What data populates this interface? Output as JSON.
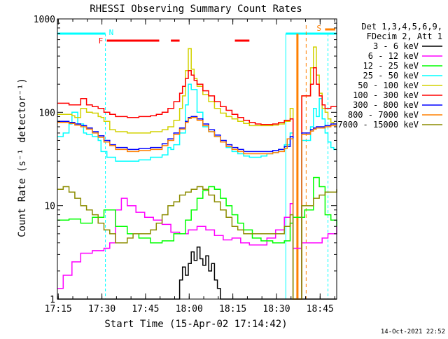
{
  "chart_data": {
    "type": "line",
    "title": "RHESSI Observing Summary Count Rates",
    "xlabel": "Start Time (15-Apr-02 17:14:42)",
    "ylabel": "Count Rate (s⁻¹ detector⁻¹)",
    "y_scale": "log",
    "ylim": [
      1,
      1000
    ],
    "y_ticks": [
      1,
      10,
      100,
      1000
    ],
    "y_tick_labels": [
      "1",
      "10",
      "100",
      "1000"
    ],
    "xlim": [
      0,
      96
    ],
    "x_ticks": [
      0.3,
      15.3,
      30.3,
      45.3,
      60.3,
      75.3,
      90.3
    ],
    "x_tick_labels": [
      "17:15",
      "17:30",
      "17:45",
      "18:00",
      "18:15",
      "18:30",
      "18:45"
    ],
    "x_units": "minutes after 17:14:42",
    "legend_position": "top-right",
    "legend_header": [
      "Det 1,3,4,5,6,9,",
      "FDecim 2, Att 1"
    ],
    "series": [
      {
        "name": "3 - 6 keV",
        "color": "#000000",
        "x": [
          0,
          17,
          18,
          41,
          42,
          43,
          44,
          45,
          46,
          47,
          48,
          49,
          50,
          51,
          52,
          53,
          54,
          55,
          56,
          59,
          60,
          96
        ],
        "y": [
          1,
          1,
          1,
          1,
          1.6,
          2.2,
          1.8,
          2.4,
          3.2,
          2.6,
          3.6,
          2.7,
          2.3,
          2.9,
          2.0,
          2.4,
          1.6,
          1.3,
          1,
          1,
          1,
          1
        ]
      },
      {
        "name": "6 - 12 keV",
        "color": "#ff00ff",
        "x": [
          0,
          2,
          5,
          8,
          12,
          16,
          18,
          20,
          22,
          24,
          27,
          30,
          33,
          36,
          39,
          42,
          45,
          48,
          51,
          54,
          57,
          60,
          63,
          66,
          69,
          72,
          75,
          78,
          80,
          81,
          84,
          88,
          91,
          93,
          96
        ],
        "y": [
          1.3,
          1.8,
          2.5,
          3.1,
          3.3,
          3.5,
          4,
          9,
          12,
          10,
          8.5,
          7.5,
          7.0,
          6.3,
          5.2,
          5.0,
          5.5,
          6.0,
          5.5,
          4.8,
          4.3,
          4.5,
          4.0,
          3.8,
          3.8,
          4.5,
          5.5,
          7.5,
          10.5,
          3.5,
          4,
          4,
          4.5,
          5,
          6
        ]
      },
      {
        "name": "12 - 25 keV",
        "color": "#00ff00",
        "x": [
          0,
          4,
          8,
          12,
          16,
          20,
          24,
          28,
          32,
          36,
          40,
          44,
          46,
          48,
          50,
          52,
          54,
          56,
          58,
          60,
          62,
          64,
          67,
          70,
          74,
          78,
          80,
          81,
          85,
          88,
          90,
          92,
          94,
          96
        ],
        "y": [
          7,
          7.2,
          6.5,
          7.5,
          9,
          6,
          5,
          4.5,
          4,
          4.2,
          5,
          7,
          9,
          12,
          14.5,
          16,
          15,
          12,
          10,
          8,
          6.5,
          5.5,
          4.5,
          4.2,
          4.0,
          4.2,
          6.5,
          7.5,
          9,
          20,
          16,
          8,
          7,
          6
        ]
      },
      {
        "name": "25 - 50 keV",
        "color": "#00ffff",
        "x": [
          0,
          2,
          4,
          5,
          7,
          9,
          10,
          12,
          14,
          15,
          17,
          20,
          24,
          28,
          32,
          36,
          38,
          39,
          40,
          42,
          44,
          45,
          46,
          48,
          50,
          52,
          54,
          56,
          58,
          60,
          62,
          64,
          66,
          68,
          70,
          72,
          74,
          76,
          78,
          80,
          81,
          84,
          87,
          88,
          89,
          90,
          91,
          92,
          93,
          94,
          95,
          96
        ],
        "y": [
          55,
          60,
          75,
          100,
          75,
          60,
          58,
          55,
          50,
          38,
          33,
          30,
          30,
          31,
          33,
          35,
          42,
          40,
          45,
          60,
          120,
          200,
          175,
          100,
          70,
          62,
          55,
          48,
          42,
          38,
          36,
          34,
          33,
          33,
          34,
          36,
          37,
          40,
          45,
          60,
          1,
          50,
          70,
          110,
          90,
          140,
          85,
          60,
          48,
          42,
          40,
          40
        ]
      },
      {
        "name": "50 - 100 keV",
        "color": "#d2d200",
        "x": [
          0,
          3,
          5,
          6,
          8,
          10,
          12,
          14,
          15,
          16,
          18,
          20,
          24,
          28,
          32,
          34,
          36,
          38,
          40,
          42,
          43,
          44,
          45,
          46,
          47,
          48,
          50,
          52,
          54,
          56,
          58,
          60,
          62,
          64,
          66,
          68,
          70,
          72,
          74,
          76,
          78,
          80,
          81,
          84,
          87,
          88,
          89,
          90,
          91,
          92,
          93,
          94,
          95,
          96
        ],
        "y": [
          95,
          95,
          92,
          88,
          110,
          100,
          98,
          90,
          88,
          80,
          65,
          62,
          60,
          60,
          62,
          62,
          65,
          70,
          82,
          110,
          150,
          280,
          480,
          290,
          230,
          190,
          155,
          130,
          110,
          98,
          90,
          85,
          80,
          76,
          72,
          72,
          72,
          72,
          73,
          75,
          80,
          110,
          1,
          150,
          300,
          500,
          250,
          160,
          110,
          100,
          85,
          78,
          75,
          75
        ]
      },
      {
        "name": "100 - 300 keV",
        "color": "#ff0000",
        "x": [
          0,
          2,
          4,
          6,
          8,
          10,
          12,
          14,
          16,
          18,
          20,
          24,
          28,
          32,
          34,
          36,
          38,
          40,
          42,
          43,
          44,
          45,
          46,
          47,
          48,
          50,
          52,
          54,
          56,
          58,
          60,
          62,
          64,
          66,
          68,
          70,
          72,
          74,
          76,
          78,
          80,
          81,
          84,
          87,
          88,
          89,
          90,
          91,
          92,
          93,
          94,
          96
        ],
        "y": [
          125,
          125,
          120,
          120,
          140,
          120,
          115,
          110,
          100,
          95,
          90,
          88,
          90,
          92,
          95,
          100,
          110,
          130,
          160,
          190,
          230,
          280,
          250,
          220,
          200,
          170,
          150,
          130,
          115,
          105,
          95,
          88,
          82,
          78,
          75,
          74,
          74,
          75,
          78,
          82,
          85,
          1,
          150,
          200,
          300,
          200,
          150,
          120,
          110,
          110,
          115,
          115
        ]
      },
      {
        "name": "300 - 800 keV",
        "color": "#0000ff",
        "x": [
          0,
          2,
          4,
          6,
          8,
          10,
          12,
          14,
          16,
          18,
          20,
          24,
          28,
          32,
          36,
          38,
          40,
          42,
          44,
          45,
          46,
          48,
          50,
          52,
          54,
          56,
          58,
          60,
          62,
          64,
          66,
          68,
          70,
          72,
          74,
          76,
          78,
          80,
          81,
          84,
          87,
          88,
          89,
          90,
          92,
          94,
          96
        ],
        "y": [
          80,
          80,
          78,
          75,
          72,
          68,
          62,
          56,
          50,
          45,
          42,
          40,
          41,
          42,
          46,
          52,
          60,
          68,
          80,
          88,
          90,
          85,
          75,
          65,
          57,
          50,
          45,
          42,
          40,
          38,
          38,
          38,
          38,
          38,
          39,
          40,
          43,
          55,
          1,
          60,
          65,
          68,
          70,
          70,
          72,
          75,
          75
        ]
      },
      {
        "name": "800 - 7000 keV",
        "color": "#ff8000",
        "x": [
          0,
          2,
          4,
          6,
          8,
          10,
          12,
          14,
          16,
          18,
          20,
          24,
          28,
          32,
          36,
          38,
          40,
          42,
          44,
          45,
          46,
          48,
          50,
          52,
          54,
          56,
          58,
          60,
          62,
          64,
          66,
          68,
          70,
          72,
          74,
          76,
          78,
          79,
          81,
          84,
          87,
          88,
          89,
          90,
          92,
          94,
          96
        ],
        "y": [
          78,
          78,
          76,
          73,
          70,
          66,
          60,
          54,
          48,
          44,
          40,
          38,
          39,
          40,
          44,
          50,
          58,
          66,
          78,
          86,
          88,
          82,
          72,
          62,
          55,
          48,
          43,
          40,
          38,
          36,
          36,
          36,
          36,
          36,
          37,
          38,
          41,
          52,
          1,
          58,
          63,
          66,
          68,
          68,
          70,
          72,
          72
        ]
      },
      {
        "name": "7000 - 15000 keV",
        "color": "#8c8c00",
        "x": [
          0,
          2,
          4,
          6,
          8,
          10,
          12,
          14,
          16,
          18,
          20,
          22,
          24,
          26,
          28,
          30,
          32,
          34,
          36,
          38,
          40,
          42,
          44,
          46,
          48,
          50,
          52,
          54,
          56,
          58,
          60,
          62,
          64,
          66,
          68,
          70,
          72,
          74,
          76,
          78,
          80,
          81,
          84,
          88,
          90,
          92,
          94,
          96
        ],
        "y": [
          15,
          16,
          14,
          12,
          10,
          9,
          8,
          6.5,
          5.5,
          5,
          4,
          4,
          4.5,
          5,
          5,
          5,
          5.5,
          6.5,
          8,
          10,
          11,
          13,
          14,
          15,
          16,
          15,
          13,
          11,
          9,
          7.5,
          6,
          5.5,
          5,
          5,
          5,
          5,
          5,
          5,
          5,
          6,
          8,
          1,
          10,
          12,
          13,
          14,
          14,
          15
        ]
      }
    ],
    "flags": {
      "saa": {
        "label": "S",
        "color": "#ff8000",
        "bar_x": [
          92,
          95.5
        ],
        "dashed_x": [
          85.5
        ]
      },
      "night": {
        "label": "N",
        "color": "#00ffff",
        "bar_x": [
          [
            0,
            16.5
          ],
          [
            78.5,
            96
          ]
        ],
        "dashed_x": [
          16.5,
          93
        ]
      },
      "flare": {
        "label": "F",
        "color": "#ff0000",
        "segments": [
          [
            17,
            35
          ],
          [
            39,
            42
          ],
          [
            61,
            66
          ]
        ]
      },
      "attenuator": {
        "color": "#ff8000",
        "x": 82.5
      }
    },
    "timestamp": "14-Oct-2021 22:52"
  }
}
